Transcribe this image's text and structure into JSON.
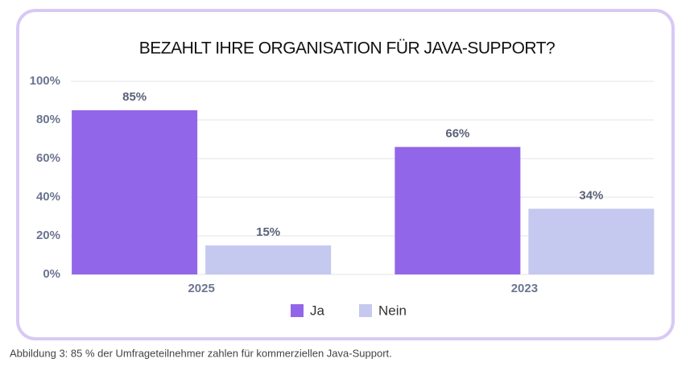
{
  "chart_data": {
    "type": "bar",
    "title": "BEZAHLT IHRE ORGANISATION FÜR JAVA-SUPPORT?",
    "categories": [
      "2025",
      "2023"
    ],
    "series": [
      {
        "name": "Ja",
        "color": "#9266e8",
        "values": [
          85,
          66
        ],
        "value_labels": [
          "85%",
          "66%"
        ]
      },
      {
        "name": "Nein",
        "color": "#c5c8ef",
        "values": [
          15,
          34
        ],
        "value_labels": [
          "15%",
          "34%"
        ]
      }
    ],
    "ylim": [
      0,
      100
    ],
    "yticks": [
      {
        "value": 0,
        "label": "0%"
      },
      {
        "value": 20,
        "label": "20%"
      },
      {
        "value": 40,
        "label": "40%"
      },
      {
        "value": 60,
        "label": "60%"
      },
      {
        "value": 80,
        "label": "80%"
      },
      {
        "value": 100,
        "label": "100%"
      }
    ],
    "grid": true,
    "caption": "Abbildung 3: 85 % der Umfrageteilnehmer zahlen für kommerziellen Java-Support."
  }
}
